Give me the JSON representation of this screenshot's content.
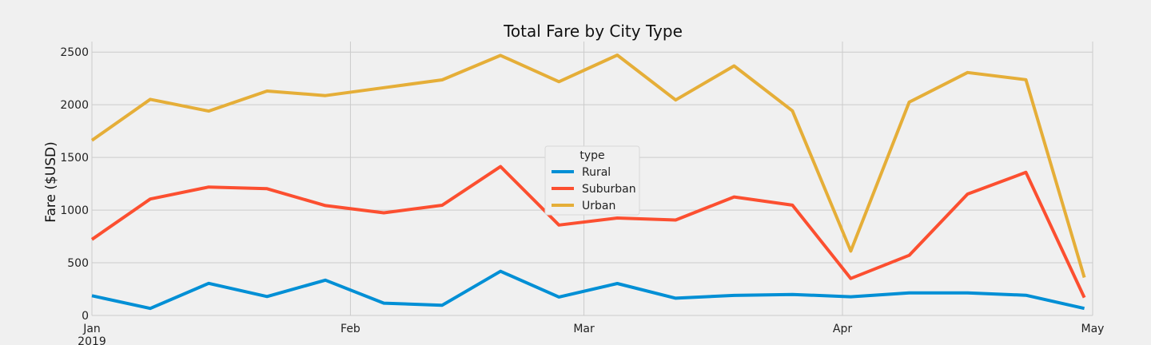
{
  "chart_data": {
    "type": "line",
    "title": "Total Fare by City Type",
    "xlabel": "",
    "ylabel": "Fare ($USD)",
    "ylim": [
      0,
      2600
    ],
    "y_ticks": [
      0,
      500,
      1000,
      1500,
      2000,
      2500
    ],
    "x": [
      "2019-01-01",
      "2019-01-08",
      "2019-01-15",
      "2019-01-22",
      "2019-01-29",
      "2019-02-05",
      "2019-02-12",
      "2019-02-19",
      "2019-02-26",
      "2019-03-05",
      "2019-03-12",
      "2019-03-19",
      "2019-03-26",
      "2019-04-02",
      "2019-04-09",
      "2019-04-16",
      "2019-04-23",
      "2019-04-30"
    ],
    "x_ticks": [
      {
        "date": "2019-01-01",
        "label": "Jan",
        "sublabel": "2019"
      },
      {
        "date": "2019-02-01",
        "label": "Feb",
        "sublabel": ""
      },
      {
        "date": "2019-03-01",
        "label": "Mar",
        "sublabel": ""
      },
      {
        "date": "2019-04-01",
        "label": "Apr",
        "sublabel": ""
      },
      {
        "date": "2019-05-01",
        "label": "May",
        "sublabel": ""
      }
    ],
    "xlim": [
      "2019-01-01",
      "2019-05-01"
    ],
    "grid": true,
    "legend": {
      "title": "type",
      "placement": "center"
    },
    "series": [
      {
        "name": "Rural",
        "color": "#008fd5",
        "values": [
          187,
          67,
          305,
          180,
          335,
          117,
          97,
          419,
          175,
          303,
          164,
          190,
          199,
          177,
          214,
          214,
          192,
          67
        ]
      },
      {
        "name": "Suburban",
        "color": "#fc4f30",
        "values": [
          722,
          1105,
          1219,
          1203,
          1043,
          974,
          1046,
          1413,
          858,
          925,
          906,
          1125,
          1047,
          351,
          571,
          1152,
          1358,
          170
        ]
      },
      {
        "name": "Urban",
        "color": "#e5ae38",
        "values": [
          1662,
          2051,
          1940,
          2130,
          2087,
          2162,
          2236,
          2468,
          2219,
          2471,
          2045,
          2369,
          1942,
          611,
          2025,
          2306,
          2238,
          360
        ]
      }
    ]
  }
}
